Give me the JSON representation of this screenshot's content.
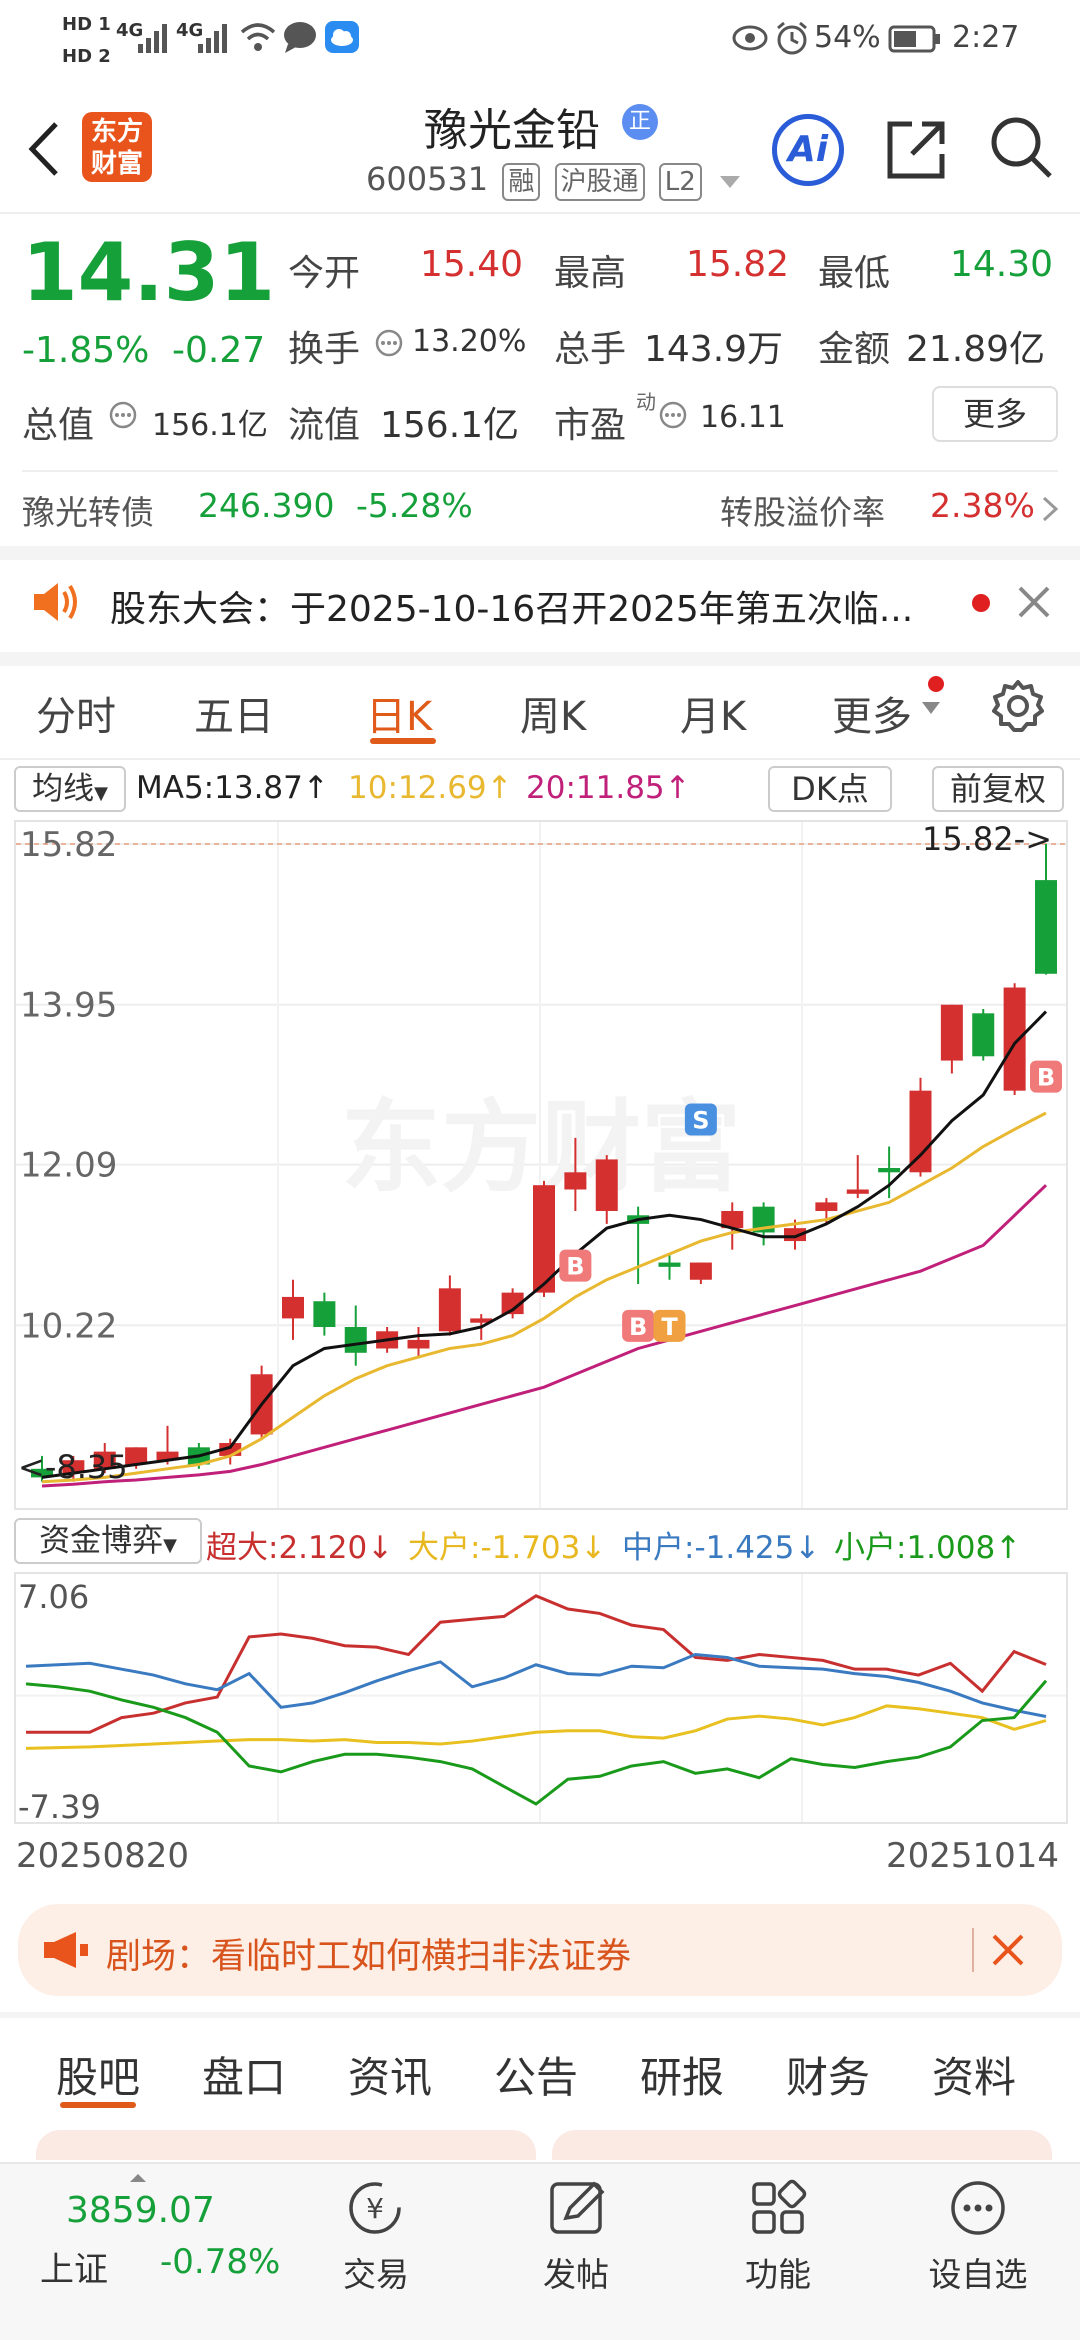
{
  "status_bar": {
    "hd1": "HD 1",
    "hd2": "HD 2",
    "signal1": "4G",
    "signal2": "4G",
    "battery": "54%",
    "time": "2:27"
  },
  "header": {
    "back_icon": "chevron-left-icon",
    "logo_line1": "东方",
    "logo_line2": "财富",
    "title": "豫光金铅",
    "title_badge": "正",
    "code": "600531",
    "tags": [
      "融",
      "沪股通",
      "L2"
    ],
    "ai_label": "Ai"
  },
  "quote": {
    "price": "14.31",
    "change_pct": "-1.85%",
    "change_val": "-0.27",
    "open_label": "今开",
    "open": "15.40",
    "high_label": "最高",
    "high": "15.82",
    "low_label": "最低",
    "low": "14.30",
    "turnover_label": "换手",
    "turnover": "13.20%",
    "volume_label": "总手",
    "volume": "143.9万",
    "amount_label": "金额",
    "amount": "21.89亿",
    "mktcap_label": "总值",
    "mktcap": "156.1亿",
    "float_label": "流值",
    "float_cap": "156.1亿",
    "pe_label": "市盈",
    "pe_sup": "动",
    "pe": "16.11",
    "more_label": "更多"
  },
  "bond": {
    "name": "豫光转债",
    "price": "246.390",
    "change": "-5.28%",
    "premium_label": "转股溢价率",
    "premium": "2.38%"
  },
  "notice": {
    "text": "股东大会：于2025-10-16召开2025年第五次临..."
  },
  "chart_tabs": {
    "items": [
      "分时",
      "五日",
      "日K",
      "周K",
      "月K",
      "更多"
    ],
    "active_index": 2
  },
  "ma_bar": {
    "selector": "均线",
    "ma5": "MA5:13.87↑",
    "ma10": "10:12.69↑",
    "ma20": "20:11.85↑",
    "dk_label": "DK点",
    "adjust_label": "前复权"
  },
  "kline": {
    "y_labels": [
      "15.82",
      "13.95",
      "12.09",
      "10.22"
    ],
    "max_marker": "15.82->",
    "min_marker": "<-8.35",
    "signal_S": "S",
    "signal_B": "B",
    "signal_T": "T",
    "watermark": "东方财富"
  },
  "fund_bar": {
    "selector": "资金博弈",
    "super": "超大:2.120↓",
    "large": "大户:-1.703↓",
    "medium": "中户:-1.425↓",
    "small": "小户:1.008↑",
    "y_top": "7.06",
    "y_bottom": "-7.39",
    "date_start": "20250820",
    "date_end": "20251014"
  },
  "ad_banner": {
    "text": "剧场：看临时工如何横扫非法证券"
  },
  "bottom_tabs": {
    "items": [
      "股吧",
      "盘口",
      "资讯",
      "公告",
      "研报",
      "财务",
      "资料"
    ],
    "active_index": 0
  },
  "nav": {
    "index_value": "3859.07",
    "index_name": "上证",
    "index_change": "-0.78%",
    "items": [
      "交易",
      "发帖",
      "功能",
      "设自选"
    ]
  },
  "colors": {
    "green": "#16a03a",
    "red": "#d43030",
    "accent": "#e05a1a",
    "ma5": "#111111",
    "ma10": "#e8b830",
    "ma20": "#c0207a",
    "super": "#c83030",
    "large": "#e8c020",
    "medium": "#3a7ac0",
    "small": "#1a9a1a"
  },
  "chart_data": [
    {
      "type": "candlestick",
      "title": "",
      "ylim": [
        8.35,
        15.82
      ],
      "y_ticks": [
        15.82,
        13.95,
        12.09,
        10.22
      ],
      "candles": [
        {
          "o": 8.55,
          "h": 8.7,
          "l": 8.4,
          "c": 8.45
        },
        {
          "o": 8.5,
          "h": 8.7,
          "l": 8.4,
          "c": 8.65
        },
        {
          "o": 8.55,
          "h": 8.85,
          "l": 8.5,
          "c": 8.75
        },
        {
          "o": 8.6,
          "h": 8.8,
          "l": 8.55,
          "c": 8.8
        },
        {
          "o": 8.65,
          "h": 9.05,
          "l": 8.6,
          "c": 8.75
        },
        {
          "o": 8.8,
          "h": 8.85,
          "l": 8.55,
          "c": 8.6
        },
        {
          "o": 8.7,
          "h": 8.9,
          "l": 8.6,
          "c": 8.85
        },
        {
          "o": 8.95,
          "h": 9.75,
          "l": 8.9,
          "c": 9.65
        },
        {
          "o": 10.3,
          "h": 10.75,
          "l": 10.05,
          "c": 10.55
        },
        {
          "o": 10.5,
          "h": 10.6,
          "l": 10.1,
          "c": 10.2
        },
        {
          "o": 10.2,
          "h": 10.45,
          "l": 9.75,
          "c": 9.9
        },
        {
          "o": 9.95,
          "h": 10.2,
          "l": 9.9,
          "c": 10.15
        },
        {
          "o": 9.95,
          "h": 10.2,
          "l": 9.85,
          "c": 10.05
        },
        {
          "o": 10.15,
          "h": 10.8,
          "l": 10.1,
          "c": 10.65
        },
        {
          "o": 10.25,
          "h": 10.35,
          "l": 10.05,
          "c": 10.3
        },
        {
          "o": 10.35,
          "h": 10.65,
          "l": 10.3,
          "c": 10.6
        },
        {
          "o": 10.6,
          "h": 11.9,
          "l": 10.55,
          "c": 11.85
        },
        {
          "o": 11.8,
          "h": 12.4,
          "l": 11.55,
          "c": 12.0
        },
        {
          "o": 11.55,
          "h": 12.2,
          "l": 11.4,
          "c": 12.15
        },
        {
          "o": 11.5,
          "h": 11.6,
          "l": 10.7,
          "c": 11.4
        },
        {
          "o": 10.95,
          "h": 11.05,
          "l": 10.75,
          "c": 10.9
        },
        {
          "o": 10.75,
          "h": 10.95,
          "l": 10.7,
          "c": 10.95
        },
        {
          "o": 11.35,
          "h": 11.65,
          "l": 11.1,
          "c": 11.55
        },
        {
          "o": 11.6,
          "h": 11.65,
          "l": 11.15,
          "c": 11.3
        },
        {
          "o": 11.2,
          "h": 11.45,
          "l": 11.1,
          "c": 11.35
        },
        {
          "o": 11.55,
          "h": 11.7,
          "l": 11.4,
          "c": 11.65
        },
        {
          "o": 11.75,
          "h": 12.2,
          "l": 11.7,
          "c": 11.8
        },
        {
          "o": 12.05,
          "h": 12.3,
          "l": 11.7,
          "c": 12.0
        },
        {
          "o": 12.0,
          "h": 13.1,
          "l": 11.95,
          "c": 12.95
        },
        {
          "o": 13.3,
          "h": 13.95,
          "l": 13.15,
          "c": 13.95
        },
        {
          "o": 13.85,
          "h": 13.9,
          "l": 13.3,
          "c": 13.35
        },
        {
          "o": 12.95,
          "h": 14.2,
          "l": 12.9,
          "c": 14.15
        },
        {
          "o": 15.4,
          "h": 15.82,
          "l": 14.3,
          "c": 14.31
        }
      ],
      "ma5": [
        8.45,
        8.5,
        8.55,
        8.6,
        8.65,
        8.7,
        8.8,
        9.3,
        9.75,
        9.95,
        10.0,
        10.05,
        10.1,
        10.12,
        10.2,
        10.4,
        10.7,
        11.05,
        11.35,
        11.45,
        11.5,
        11.45,
        11.35,
        11.25,
        11.25,
        11.4,
        11.6,
        11.85,
        12.2,
        12.6,
        12.9,
        13.5,
        13.87
      ],
      "ma10": [
        8.4,
        8.42,
        8.45,
        8.5,
        8.55,
        8.6,
        8.7,
        8.9,
        9.15,
        9.4,
        9.6,
        9.75,
        9.85,
        9.95,
        10.0,
        10.1,
        10.3,
        10.55,
        10.75,
        10.9,
        11.05,
        11.2,
        11.3,
        11.35,
        11.4,
        11.45,
        11.55,
        11.65,
        11.85,
        12.05,
        12.3,
        12.5,
        12.69
      ],
      "ma20": [
        8.35,
        8.37,
        8.4,
        8.42,
        8.45,
        8.48,
        8.52,
        8.6,
        8.7,
        8.8,
        8.9,
        9.0,
        9.1,
        9.2,
        9.3,
        9.4,
        9.5,
        9.65,
        9.8,
        9.95,
        10.05,
        10.15,
        10.25,
        10.35,
        10.45,
        10.55,
        10.65,
        10.75,
        10.85,
        11.0,
        11.15,
        11.5,
        11.85
      ]
    },
    {
      "type": "line",
      "title": "",
      "ylim": [
        -7.39,
        7.06
      ],
      "x_labels": [
        "20250820",
        "20251014"
      ],
      "series": [
        {
          "name": "超大",
          "values": [
            -2.5,
            -2.5,
            -2.5,
            -1.5,
            -1.2,
            -0.5,
            -0.1,
            4.0,
            4.2,
            3.9,
            3.4,
            3.3,
            2.8,
            5.0,
            5.2,
            5.4,
            6.8,
            5.9,
            5.6,
            4.8,
            4.5,
            2.6,
            2.4,
            2.8,
            2.6,
            2.4,
            1.8,
            1.8,
            1.4,
            2.2,
            0.3,
            3.0,
            2.12
          ]
        },
        {
          "name": "大户",
          "values": [
            -3.6,
            -3.55,
            -3.5,
            -3.4,
            -3.3,
            -3.2,
            -3.1,
            -3.0,
            -3.0,
            -3.1,
            -3.0,
            -3.2,
            -3.2,
            -3.3,
            -3.1,
            -2.8,
            -2.5,
            -2.4,
            -2.4,
            -2.8,
            -2.9,
            -2.4,
            -1.6,
            -1.4,
            -1.6,
            -2.0,
            -1.5,
            -0.7,
            -0.9,
            -1.2,
            -1.5,
            -2.3,
            -1.703
          ]
        },
        {
          "name": "中户",
          "values": [
            2.0,
            2.1,
            2.2,
            1.8,
            1.4,
            0.8,
            0.4,
            1.5,
            -0.8,
            -0.5,
            0.2,
            1.0,
            1.7,
            2.3,
            0.6,
            1.2,
            2.1,
            1.5,
            1.4,
            2.0,
            1.9,
            2.8,
            2.6,
            2.0,
            1.9,
            1.8,
            1.5,
            1.3,
            0.9,
            0.3,
            -0.5,
            -1.0,
            -1.425
          ]
        },
        {
          "name": "小户",
          "values": [
            0.8,
            0.6,
            0.3,
            -0.3,
            -0.8,
            -1.5,
            -2.5,
            -4.8,
            -5.2,
            -4.5,
            -4.0,
            -4.0,
            -4.2,
            -4.5,
            -5.0,
            -6.2,
            -7.39,
            -5.7,
            -5.5,
            -4.8,
            -4.5,
            -5.3,
            -5.0,
            -5.6,
            -4.3,
            -4.7,
            -4.9,
            -4.5,
            -4.2,
            -3.5,
            -1.7,
            -1.5,
            1.008
          ]
        }
      ]
    }
  ]
}
